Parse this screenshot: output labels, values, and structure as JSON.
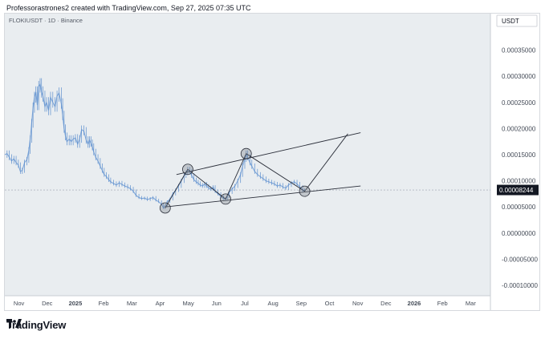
{
  "caption": "Professorastrones2 created with TradingView.com, Sep 27, 2025 07:35 UTC",
  "branding": "TradingView",
  "chart_data": {
    "type": "line",
    "title": "FLOKIUSDT · 1D · Binance",
    "currency": "USDT",
    "current_price": 8.244e-05,
    "current_price_label": "0.00008244",
    "ylim": [
      -0.00012,
      0.00042
    ],
    "y_ticks": [
      {
        "value": 0.00035,
        "label": "0.00035000"
      },
      {
        "value": 0.0003,
        "label": "0.00030000"
      },
      {
        "value": 0.00025,
        "label": "0.00025000"
      },
      {
        "value": 0.0002,
        "label": "0.00020000"
      },
      {
        "value": 0.00015,
        "label": "0.00015000"
      },
      {
        "value": 0.0001,
        "label": "0.00010000"
      },
      {
        "value": 5e-05,
        "label": "0.00005000"
      },
      {
        "value": 0.0,
        "label": "0.00000000"
      },
      {
        "value": -5e-05,
        "label": "-0.00005000"
      },
      {
        "value": -0.0001,
        "label": "-0.00010000"
      }
    ],
    "x_ticks": [
      {
        "t": 0.5,
        "label": "Nov",
        "bold": false
      },
      {
        "t": 1.5,
        "label": "Dec",
        "bold": false
      },
      {
        "t": 2.5,
        "label": "2025",
        "bold": true
      },
      {
        "t": 3.5,
        "label": "Feb",
        "bold": false
      },
      {
        "t": 4.5,
        "label": "Mar",
        "bold": false
      },
      {
        "t": 5.5,
        "label": "Apr",
        "bold": false
      },
      {
        "t": 6.5,
        "label": "May",
        "bold": false
      },
      {
        "t": 7.5,
        "label": "Jun",
        "bold": false
      },
      {
        "t": 8.5,
        "label": "Jul",
        "bold": false
      },
      {
        "t": 9.5,
        "label": "Aug",
        "bold": false
      },
      {
        "t": 10.5,
        "label": "Sep",
        "bold": false
      },
      {
        "t": 11.5,
        "label": "Oct",
        "bold": false
      },
      {
        "t": 12.5,
        "label": "Nov",
        "bold": false
      },
      {
        "t": 13.5,
        "label": "Dec",
        "bold": false
      },
      {
        "t": 14.5,
        "label": "2026",
        "bold": true
      },
      {
        "t": 15.5,
        "label": "Feb",
        "bold": false
      },
      {
        "t": 16.5,
        "label": "Mar",
        "bold": false
      }
    ],
    "price_series": [
      [
        0.0,
        0.00015
      ],
      [
        0.08,
        0.000152
      ],
      [
        0.16,
        0.000145
      ],
      [
        0.24,
        0.000138
      ],
      [
        0.32,
        0.000142
      ],
      [
        0.4,
        0.000135
      ],
      [
        0.48,
        0.00013
      ],
      [
        0.55,
        0.000118
      ],
      [
        0.62,
        0.00012
      ],
      [
        0.7,
        0.000135
      ],
      [
        0.78,
        0.00014
      ],
      [
        0.85,
        0.000158
      ],
      [
        0.9,
        0.00018
      ],
      [
        0.95,
        0.00021
      ],
      [
        1.0,
        0.00024
      ],
      [
        1.05,
        0.00026
      ],
      [
        1.1,
        0.00027
      ],
      [
        1.15,
        0.000245
      ],
      [
        1.2,
        0.00028
      ],
      [
        1.25,
        0.000285
      ],
      [
        1.3,
        0.00027
      ],
      [
        1.35,
        0.000262
      ],
      [
        1.42,
        0.000242
      ],
      [
        1.48,
        0.00025
      ],
      [
        1.55,
        0.000235
      ],
      [
        1.62,
        0.00026
      ],
      [
        1.7,
        0.00025
      ],
      [
        1.78,
        0.000242
      ],
      [
        1.85,
        0.000262
      ],
      [
        1.92,
        0.000268
      ],
      [
        2.0,
        0.000248
      ],
      [
        2.05,
        0.000225
      ],
      [
        2.1,
        0.0002
      ],
      [
        2.15,
        0.000185
      ],
      [
        2.2,
        0.000175
      ],
      [
        2.28,
        0.00018
      ],
      [
        2.35,
        0.000175
      ],
      [
        2.42,
        0.00018
      ],
      [
        2.5,
        0.000182
      ],
      [
        2.58,
        0.00017
      ],
      [
        2.65,
        0.00018
      ],
      [
        2.72,
        0.000198
      ],
      [
        2.8,
        0.000195
      ],
      [
        2.88,
        0.000178
      ],
      [
        2.95,
        0.00017
      ],
      [
        3.0,
        0.000178
      ],
      [
        3.05,
        0.000172
      ],
      [
        3.1,
        0.000165
      ],
      [
        3.15,
        0.000155
      ],
      [
        3.22,
        0.000145
      ],
      [
        3.3,
        0.000138
      ],
      [
        3.38,
        0.000128
      ],
      [
        3.45,
        0.00012
      ],
      [
        3.52,
        0.000112
      ],
      [
        3.6,
        0.000108
      ],
      [
        3.68,
        0.000102
      ],
      [
        3.75,
        9.8e-05
      ],
      [
        3.85,
        9.5e-05
      ],
      [
        3.95,
        9.2e-05
      ],
      [
        4.05,
        9.6e-05
      ],
      [
        4.15,
        9.3e-05
      ],
      [
        4.25,
        9e-05
      ],
      [
        4.35,
        8.8e-05
      ],
      [
        4.45,
        8.5e-05
      ],
      [
        4.55,
        8e-05
      ],
      [
        4.65,
        7.2e-05
      ],
      [
        4.75,
        6.8e-05
      ],
      [
        4.85,
        6.6e-05
      ],
      [
        4.95,
        6.7e-05
      ],
      [
        5.05,
        6.4e-05
      ],
      [
        5.15,
        6.6e-05
      ],
      [
        5.25,
        6.8e-05
      ],
      [
        5.35,
        6.3e-05
      ],
      [
        5.45,
        6e-05
      ],
      [
        5.55,
        5.5e-05
      ],
      [
        5.62,
        4.8e-05
      ],
      [
        5.68,
        5.2e-05
      ],
      [
        5.75,
        6e-05
      ],
      [
        5.85,
        6.5e-05
      ],
      [
        5.95,
        7.5e-05
      ],
      [
        6.05,
        8.2e-05
      ],
      [
        6.15,
        9e-05
      ],
      [
        6.25,
        0.0001
      ],
      [
        6.35,
        0.00011
      ],
      [
        6.42,
        0.000115
      ],
      [
        6.48,
        0.000122
      ],
      [
        6.55,
        0.000118
      ],
      [
        6.62,
        0.00011
      ],
      [
        6.7,
        0.000102
      ],
      [
        6.78,
        9.8e-05
      ],
      [
        6.85,
        9.5e-05
      ],
      [
        6.92,
        9.2e-05
      ],
      [
        7.0,
        9e-05
      ],
      [
        7.08,
        9.4e-05
      ],
      [
        7.15,
        9e-05
      ],
      [
        7.22,
        8.6e-05
      ],
      [
        7.3,
        8.4e-05
      ],
      [
        7.38,
        8.8e-05
      ],
      [
        7.45,
        8e-05
      ],
      [
        7.55,
        7.5e-05
      ],
      [
        7.65,
        7e-05
      ],
      [
        7.75,
        6.6e-05
      ],
      [
        7.82,
        6.5e-05
      ],
      [
        7.88,
        7e-05
      ],
      [
        7.95,
        7.8e-05
      ],
      [
        8.05,
        8.4e-05
      ],
      [
        8.15,
        9e-05
      ],
      [
        8.25,
        0.0001
      ],
      [
        8.35,
        0.000112
      ],
      [
        8.42,
        0.000128
      ],
      [
        8.5,
        0.000142
      ],
      [
        8.55,
        0.000152
      ],
      [
        8.6,
        0.000145
      ],
      [
        8.68,
        0.000135
      ],
      [
        8.75,
        0.000128
      ],
      [
        8.85,
        0.000118
      ],
      [
        8.95,
        0.000112
      ],
      [
        9.05,
        0.000108
      ],
      [
        9.15,
        0.000104
      ],
      [
        9.25,
        0.0001
      ],
      [
        9.35,
        9.8e-05
      ],
      [
        9.45,
        9.6e-05
      ],
      [
        9.55,
        9.4e-05
      ],
      [
        9.65,
        9e-05
      ],
      [
        9.75,
        9.2e-05
      ],
      [
        9.85,
        8.8e-05
      ],
      [
        9.95,
        8.6e-05
      ],
      [
        10.05,
        9.2e-05
      ],
      [
        10.15,
        9.6e-05
      ],
      [
        10.25,
        9.8e-05
      ],
      [
        10.35,
        9.4e-05
      ],
      [
        10.45,
        8.8e-05
      ],
      [
        10.55,
        8.2e-05
      ],
      [
        10.62,
        8.2e-05
      ]
    ],
    "annotations": {
      "channel_upper": [
        [
          6.08,
          0.000112
        ],
        [
          12.6,
          0.000192
        ]
      ],
      "channel_lower": [
        [
          5.68,
          5e-05
        ],
        [
          12.6,
          9e-05
        ]
      ],
      "zigzag": [
        [
          5.68,
          4.8e-05
        ],
        [
          6.48,
          0.000122
        ],
        [
          7.82,
          6.5e-05
        ],
        [
          8.55,
          0.000152
        ],
        [
          10.62,
          8e-05
        ],
        [
          12.15,
          0.00019
        ]
      ],
      "circles": [
        [
          5.68,
          4.8e-05
        ],
        [
          6.48,
          0.000122
        ],
        [
          7.82,
          6.5e-05
        ],
        [
          8.55,
          0.000152
        ],
        [
          10.62,
          8e-05
        ]
      ]
    }
  }
}
